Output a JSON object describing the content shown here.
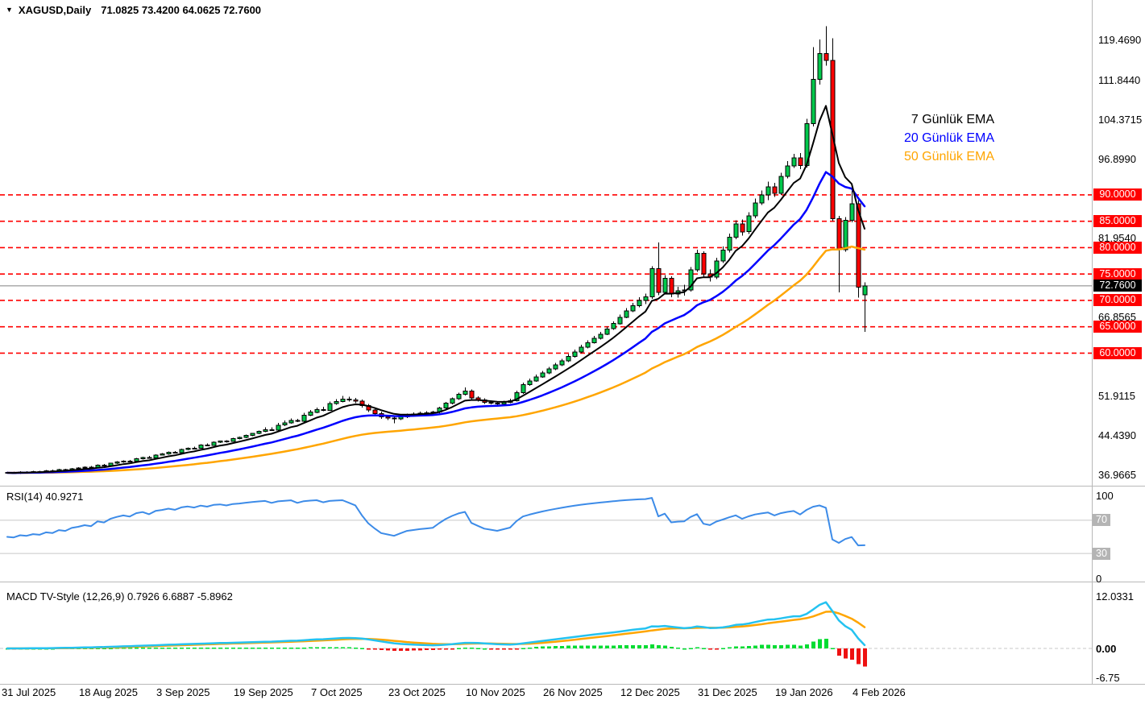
{
  "header": {
    "dropdown_icon": "▼",
    "symbol": "XAGUSD,Daily",
    "ohlc": "71.0825 73.4200 64.0625 72.7600"
  },
  "legend": {
    "items": [
      {
        "label": "7 Günlük EMA",
        "color": "#000000",
        "period": 7
      },
      {
        "label": "20 Günlük EMA",
        "color": "#0000FF",
        "period": 20
      },
      {
        "label": "50 Günlük EMA",
        "color": "#FFA500",
        "period": 50
      }
    ]
  },
  "chart_data": {
    "type": "candlestick",
    "symbol": "XAGUSD",
    "timeframe": "Daily",
    "title_ohlc": {
      "open": "71.0825",
      "high": "73.4200",
      "low": "64.0625",
      "close": "72.7600"
    },
    "x_labels": [
      "31 Jul 2025",
      "18 Aug 2025",
      "3 Sep 2025",
      "19 Sep 2025",
      "7 Oct 2025",
      "23 Oct 2025",
      "10 Nov 2025",
      "26 Nov 2025",
      "12 Dec 2025",
      "31 Dec 2025",
      "19 Jan 2026",
      "4 Feb 2026"
    ],
    "x_label_every_n_bars": 12,
    "price_ticks": [
      "119.4690",
      "111.8440",
      "104.3715",
      "96.8990",
      "81.9540",
      "66.8565",
      "51.9115",
      "44.4390",
      "36.9665"
    ],
    "red_dashed_levels": [
      "90.0000",
      "85.0000",
      "80.0000",
      "75.0000",
      "70.0000",
      "65.0000",
      "60.0000"
    ],
    "current_price_badge": "72.7600",
    "current_price": 72.76,
    "colors": {
      "up": "#00C84B",
      "down": "#FF0000",
      "wick": "#000000",
      "grid_red": "#FF0000",
      "current_line": "#808080",
      "band": "#C6C6C6",
      "separator": "#B8B8B8"
    },
    "candles": [
      [
        37.4,
        37.55,
        37.15,
        37.3
      ],
      [
        37.3,
        37.5,
        37.1,
        37.25
      ],
      [
        37.25,
        37.6,
        37.1,
        37.45
      ],
      [
        37.45,
        37.6,
        37.25,
        37.4
      ],
      [
        37.4,
        37.7,
        37.3,
        37.55
      ],
      [
        37.55,
        37.7,
        37.35,
        37.5
      ],
      [
        37.5,
        37.85,
        37.4,
        37.7
      ],
      [
        37.7,
        37.9,
        37.55,
        37.65
      ],
      [
        37.65,
        38.05,
        37.55,
        37.9
      ],
      [
        37.9,
        38.1,
        37.75,
        37.85
      ],
      [
        37.85,
        38.25,
        37.75,
        38.1
      ],
      [
        38.1,
        38.35,
        37.95,
        38.2
      ],
      [
        38.2,
        38.5,
        38.05,
        38.35
      ],
      [
        38.35,
        38.6,
        38.15,
        38.3
      ],
      [
        38.3,
        38.9,
        38.2,
        38.75
      ],
      [
        38.75,
        38.95,
        38.55,
        38.7
      ],
      [
        38.7,
        39.25,
        38.6,
        39.1
      ],
      [
        39.1,
        39.5,
        38.95,
        39.35
      ],
      [
        39.35,
        39.7,
        39.2,
        39.55
      ],
      [
        39.55,
        39.75,
        39.35,
        39.5
      ],
      [
        39.5,
        40.15,
        39.4,
        40.0
      ],
      [
        40.0,
        40.35,
        39.85,
        40.2
      ],
      [
        40.2,
        40.5,
        40.0,
        40.1
      ],
      [
        40.1,
        40.85,
        40.0,
        40.7
      ],
      [
        40.7,
        41.05,
        40.55,
        40.9
      ],
      [
        40.9,
        41.35,
        40.75,
        41.2
      ],
      [
        41.2,
        41.4,
        41.0,
        41.15
      ],
      [
        41.15,
        41.9,
        41.05,
        41.75
      ],
      [
        41.75,
        42.15,
        41.6,
        42.0
      ],
      [
        42.0,
        42.3,
        41.8,
        41.95
      ],
      [
        41.95,
        42.7,
        41.85,
        42.55
      ],
      [
        42.55,
        42.9,
        42.35,
        42.5
      ],
      [
        42.5,
        43.25,
        42.4,
        43.1
      ],
      [
        43.1,
        43.45,
        42.95,
        43.3
      ],
      [
        43.3,
        43.5,
        43.05,
        43.25
      ],
      [
        43.25,
        43.95,
        43.15,
        43.8
      ],
      [
        43.8,
        44.15,
        43.65,
        44.0
      ],
      [
        44.0,
        44.55,
        43.85,
        44.4
      ],
      [
        44.4,
        44.9,
        44.25,
        44.75
      ],
      [
        44.75,
        45.3,
        44.6,
        45.15
      ],
      [
        45.15,
        45.9,
        45.0,
        45.5
      ],
      [
        45.5,
        45.95,
        45.3,
        45.4
      ],
      [
        45.4,
        46.75,
        45.25,
        46.35
      ],
      [
        46.35,
        47.2,
        46.2,
        46.8
      ],
      [
        46.8,
        47.6,
        46.6,
        47.2
      ],
      [
        47.2,
        47.55,
        46.9,
        47.05
      ],
      [
        47.05,
        48.65,
        46.95,
        48.25
      ],
      [
        48.25,
        49.2,
        48.05,
        48.8
      ],
      [
        48.8,
        49.7,
        48.6,
        49.3
      ],
      [
        49.3,
        49.8,
        49.0,
        49.15
      ],
      [
        49.15,
        50.8,
        49.05,
        50.4
      ],
      [
        50.4,
        51.25,
        50.2,
        50.85
      ],
      [
        50.85,
        51.9,
        50.65,
        51.3
      ],
      [
        51.3,
        51.75,
        50.8,
        51.1
      ],
      [
        51.1,
        51.5,
        50.55,
        50.9
      ],
      [
        50.9,
        51.2,
        49.7,
        50.05
      ],
      [
        50.05,
        50.4,
        48.85,
        49.2
      ],
      [
        49.2,
        49.55,
        48.2,
        48.55
      ],
      [
        48.55,
        48.9,
        47.55,
        47.9
      ],
      [
        47.9,
        48.25,
        47.3,
        47.7
      ],
      [
        47.7,
        48.0,
        46.7,
        47.5
      ],
      [
        47.5,
        48.2,
        47.3,
        47.9
      ],
      [
        47.9,
        48.55,
        47.7,
        48.3
      ],
      [
        48.3,
        48.75,
        48.1,
        48.45
      ],
      [
        48.45,
        48.9,
        48.25,
        48.6
      ],
      [
        48.6,
        48.95,
        48.4,
        48.7
      ],
      [
        48.7,
        49.05,
        48.5,
        48.8
      ],
      [
        48.8,
        49.85,
        48.6,
        49.6
      ],
      [
        49.6,
        50.75,
        49.4,
        50.5
      ],
      [
        50.5,
        51.6,
        50.3,
        51.35
      ],
      [
        51.35,
        52.5,
        51.15,
        52.2
      ],
      [
        52.2,
        53.5,
        52.0,
        52.8
      ],
      [
        52.8,
        53.1,
        51.2,
        51.5
      ],
      [
        51.5,
        51.85,
        50.8,
        51.1
      ],
      [
        51.1,
        51.45,
        50.4,
        50.7
      ],
      [
        50.7,
        51.05,
        50.3,
        50.55
      ],
      [
        50.55,
        50.9,
        50.15,
        50.4
      ],
      [
        50.4,
        50.95,
        50.2,
        50.7
      ],
      [
        50.7,
        51.35,
        50.5,
        51.0
      ],
      [
        51.0,
        52.9,
        50.8,
        52.5
      ],
      [
        52.5,
        54.4,
        52.3,
        54.0
      ],
      [
        54.0,
        55.15,
        53.8,
        54.75
      ],
      [
        54.75,
        55.9,
        54.55,
        55.5
      ],
      [
        55.5,
        56.65,
        55.3,
        56.25
      ],
      [
        56.25,
        57.4,
        56.05,
        57.0
      ],
      [
        57.0,
        58.15,
        56.8,
        57.75
      ],
      [
        57.75,
        58.95,
        57.55,
        58.5
      ],
      [
        58.5,
        59.8,
        58.3,
        59.35
      ],
      [
        59.35,
        60.65,
        59.15,
        60.2
      ],
      [
        60.2,
        61.55,
        60.0,
        61.1
      ],
      [
        61.1,
        62.45,
        60.9,
        62.0
      ],
      [
        62.0,
        63.25,
        61.8,
        62.8
      ],
      [
        62.8,
        64.05,
        62.6,
        63.6
      ],
      [
        63.6,
        65.05,
        63.4,
        64.6
      ],
      [
        64.6,
        66.05,
        64.4,
        65.6
      ],
      [
        65.6,
        67.3,
        65.4,
        66.8
      ],
      [
        66.8,
        68.5,
        66.6,
        68.0
      ],
      [
        68.0,
        69.5,
        67.8,
        69.0
      ],
      [
        69.0,
        70.6,
        68.7,
        70.0
      ],
      [
        70.0,
        71.3,
        69.3,
        70.7
      ],
      [
        70.7,
        76.5,
        70.3,
        76.0
      ],
      [
        76.0,
        81.0,
        71.0,
        71.5
      ],
      [
        71.5,
        74.8,
        71.1,
        74.2
      ],
      [
        74.2,
        74.6,
        70.6,
        71.2
      ],
      [
        71.2,
        72.6,
        70.5,
        71.8
      ],
      [
        71.8,
        73.0,
        70.9,
        72.0
      ],
      [
        72.0,
        76.3,
        71.7,
        75.8
      ],
      [
        75.8,
        79.6,
        75.4,
        78.9
      ],
      [
        78.9,
        79.3,
        74.4,
        75.0
      ],
      [
        75.0,
        75.9,
        73.6,
        74.4
      ],
      [
        74.4,
        78.1,
        74.0,
        77.5
      ],
      [
        77.5,
        80.2,
        77.1,
        79.5
      ],
      [
        79.5,
        82.7,
        79.1,
        82.0
      ],
      [
        82.0,
        85.2,
        81.6,
        84.5
      ],
      [
        84.5,
        85.3,
        82.3,
        83.0
      ],
      [
        83.0,
        86.7,
        82.6,
        86.0
      ],
      [
        86.0,
        89.3,
        85.6,
        88.5
      ],
      [
        88.5,
        90.8,
        88.1,
        90.0
      ],
      [
        90.0,
        92.5,
        89.0,
        91.5
      ],
      [
        91.5,
        92.3,
        89.6,
        90.3
      ],
      [
        90.3,
        94.2,
        90.0,
        93.5
      ],
      [
        93.5,
        96.4,
        93.1,
        95.5
      ],
      [
        95.5,
        97.8,
        95.1,
        97.0
      ],
      [
        97.0,
        97.9,
        94.9,
        95.6
      ],
      [
        95.6,
        104.4,
        95.2,
        103.5
      ],
      [
        103.5,
        118.0,
        103.0,
        111.9
      ],
      [
        111.9,
        119.5,
        110.9,
        116.8
      ],
      [
        116.8,
        122.0,
        114.5,
        115.5
      ],
      [
        115.5,
        119.7,
        85.0,
        85.5
      ],
      [
        85.5,
        86.0,
        71.5,
        79.6
      ],
      [
        79.6,
        85.8,
        79.2,
        85.2
      ],
      [
        85.2,
        91.0,
        84.8,
        88.3
      ],
      [
        88.3,
        89.0,
        70.5,
        72.5
      ],
      [
        71.08,
        73.42,
        64.06,
        72.76
      ]
    ],
    "overlays": [
      {
        "name": "EMA",
        "period": 7,
        "color": "#000000"
      },
      {
        "name": "EMA",
        "period": 20,
        "color": "#0000FF"
      },
      {
        "name": "EMA",
        "period": 50,
        "color": "#FFA500"
      }
    ],
    "rsi": {
      "label": "RSI(14) 40.9271",
      "period": 14,
      "last_value": "40.9271",
      "plain_ticks": [
        "100",
        "0"
      ],
      "band_ticks": [
        "70",
        "30"
      ],
      "band_levels": [
        70,
        30
      ],
      "color": "#3C8BE8"
    },
    "macd": {
      "label": "MACD TV-Style (12,26,9) 0.7926 6.6887 -5.8962",
      "fast": 12,
      "slow": 26,
      "signal_period": 9,
      "last_macd": "0.7926",
      "last_signal": "6.6887",
      "last_hist": "-5.8962",
      "ticks": [
        "12.0331",
        "0.00",
        "-6.75"
      ],
      "macd_color": "#24C2F0",
      "signal_color": "#FFA500",
      "hist_up": "#00DC32",
      "hist_down": "#EE1111"
    }
  }
}
